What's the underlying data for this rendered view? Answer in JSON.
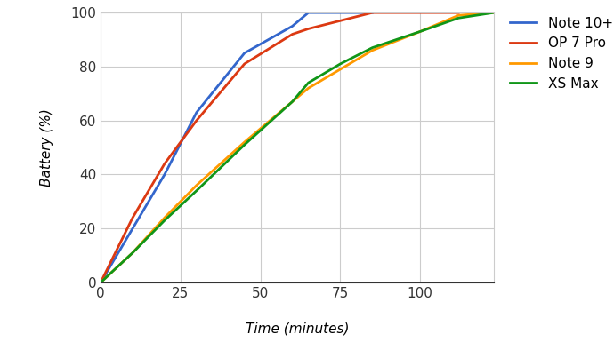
{
  "chart_data": {
    "type": "line",
    "x_label": "Time (minutes)",
    "y_label": "Battery (%)",
    "x": [
      0,
      10,
      20,
      30,
      45,
      60,
      65,
      75,
      85,
      100,
      112,
      123
    ],
    "series": [
      {
        "name": "Note 10+",
        "color": "#3366cc",
        "values": [
          0,
          20,
          40,
          63,
          85,
          95,
          100,
          100,
          100,
          null,
          null,
          null
        ]
      },
      {
        "name": "OP 7 Pro",
        "color": "#dc3912",
        "values": [
          0,
          24,
          44,
          60,
          81,
          92,
          94,
          97,
          100,
          100,
          100,
          null
        ]
      },
      {
        "name": "Note 9",
        "color": "#ff9900",
        "values": [
          0,
          11,
          24,
          36,
          52,
          67,
          72,
          79,
          86,
          93,
          99,
          100
        ]
      },
      {
        "name": "XS Max",
        "color": "#109618",
        "values": [
          0,
          11,
          23,
          34,
          51,
          67,
          74,
          81,
          87,
          93,
          98,
          100
        ]
      }
    ],
    "xlim": [
      0,
      123
    ],
    "xticks": [
      0,
      25,
      50,
      75,
      100
    ],
    "ylim": [
      0,
      100
    ],
    "yticks": [
      0,
      20,
      40,
      60,
      80,
      100
    ],
    "grid": true,
    "legend": "right"
  }
}
